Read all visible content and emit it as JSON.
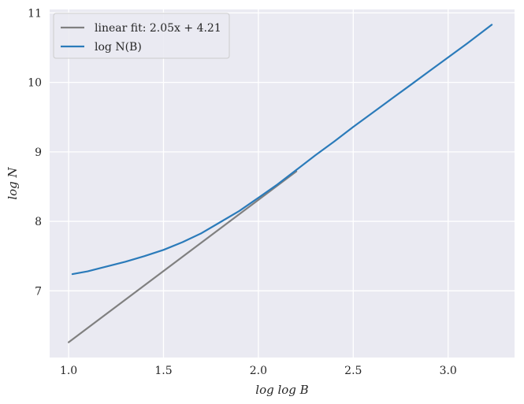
{
  "chart_data": {
    "type": "line",
    "title": "",
    "xlabel": "log log B",
    "ylabel": "log N",
    "xlim": [
      0.9,
      3.35
    ],
    "ylim": [
      6.04,
      11.05
    ],
    "xticks": [
      "1.0",
      "1.5",
      "2.0",
      "2.5",
      "3.0"
    ],
    "yticks": [
      "7",
      "8",
      "9",
      "10",
      "11"
    ],
    "grid": true,
    "background": "#eaeaf2",
    "legend_position": "top-left",
    "series": [
      {
        "name": "linear fit: 2.05x + 4.21",
        "color": "#808080",
        "x": [
          1.0,
          2.2
        ],
        "y": [
          6.26,
          8.72
        ]
      },
      {
        "name": "log N(B)",
        "color": "#2b7bba",
        "x": [
          1.02,
          1.1,
          1.2,
          1.3,
          1.4,
          1.5,
          1.6,
          1.7,
          1.8,
          1.9,
          2.0,
          2.1,
          2.2,
          2.3,
          2.4,
          2.5,
          2.6,
          2.7,
          2.8,
          2.9,
          3.0,
          3.1,
          3.23
        ],
        "y": [
          7.24,
          7.28,
          7.35,
          7.42,
          7.5,
          7.59,
          7.7,
          7.83,
          7.99,
          8.15,
          8.34,
          8.53,
          8.74,
          8.95,
          9.15,
          9.36,
          9.56,
          9.76,
          9.96,
          10.16,
          10.36,
          10.56,
          10.83
        ]
      }
    ]
  }
}
